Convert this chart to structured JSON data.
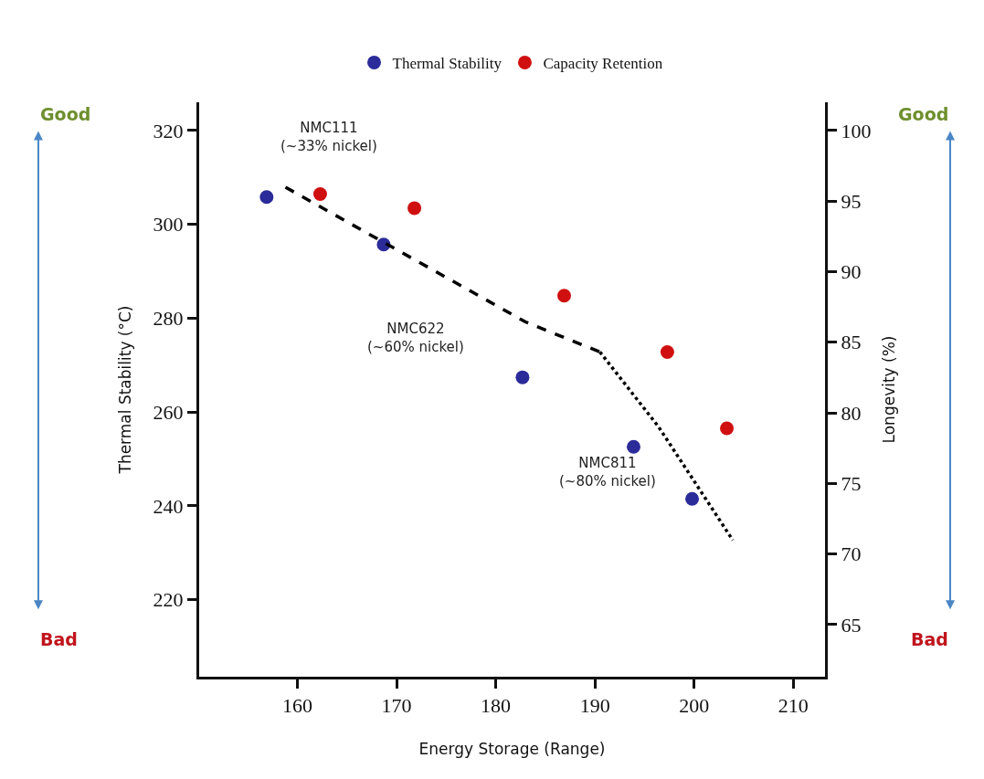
{
  "chart_data": {
    "type": "scatter",
    "xlabel": "Energy Storage (Range)",
    "ylabel": "Thermal Stability (°C)",
    "y2label": "Longevity (%)",
    "xlim": [
      150.1,
      213.2
    ],
    "xticks": [
      160,
      170,
      180,
      190,
      200,
      210
    ],
    "ylim": [
      203.6,
      326
    ],
    "yticks": [
      220,
      240,
      260,
      280,
      300,
      320
    ],
    "y2lim": [
      61.3,
      102
    ],
    "y2ticks": [
      65,
      70,
      75,
      80,
      85,
      90,
      95,
      100
    ],
    "marker": "circle",
    "legend": "top",
    "series": [
      {
        "name": "Thermal Stability",
        "color": "#2b2b9a",
        "x": [
          156.9,
          168.7,
          182.7,
          193.9,
          199.8
        ],
        "values": [
          305.8,
          295.7,
          267.4,
          252.6,
          241.5
        ]
      },
      {
        "name": "Capacity Retention",
        "color": "#d01010",
        "axis": "y2",
        "x": [
          162.3,
          171.8,
          186.9,
          197.3,
          203.3
        ],
        "values": [
          95.5,
          94.5,
          88.3,
          84.3,
          78.9
        ]
      },
      {
        "type": "line",
        "color": "#000000",
        "line_style": "dashed",
        "marker": "none",
        "x": [
          158.8,
          183.0,
          190.5
        ],
        "values": [
          307.9,
          279.2,
          272.8
        ]
      },
      {
        "type": "line",
        "color": "#000000",
        "line_style": "dotted",
        "marker": "none",
        "x": [
          190.5,
          196.4,
          203.9
        ],
        "values": [
          272.8,
          256.9,
          232.7
        ]
      }
    ],
    "annotations": [
      "NMC111\n(~33% nickel)",
      "NMC622\n(~60% nickel)",
      "NMC811\n(~80% nickel)",
      "Good",
      "Bad",
      "Good",
      "Bad"
    ]
  }
}
